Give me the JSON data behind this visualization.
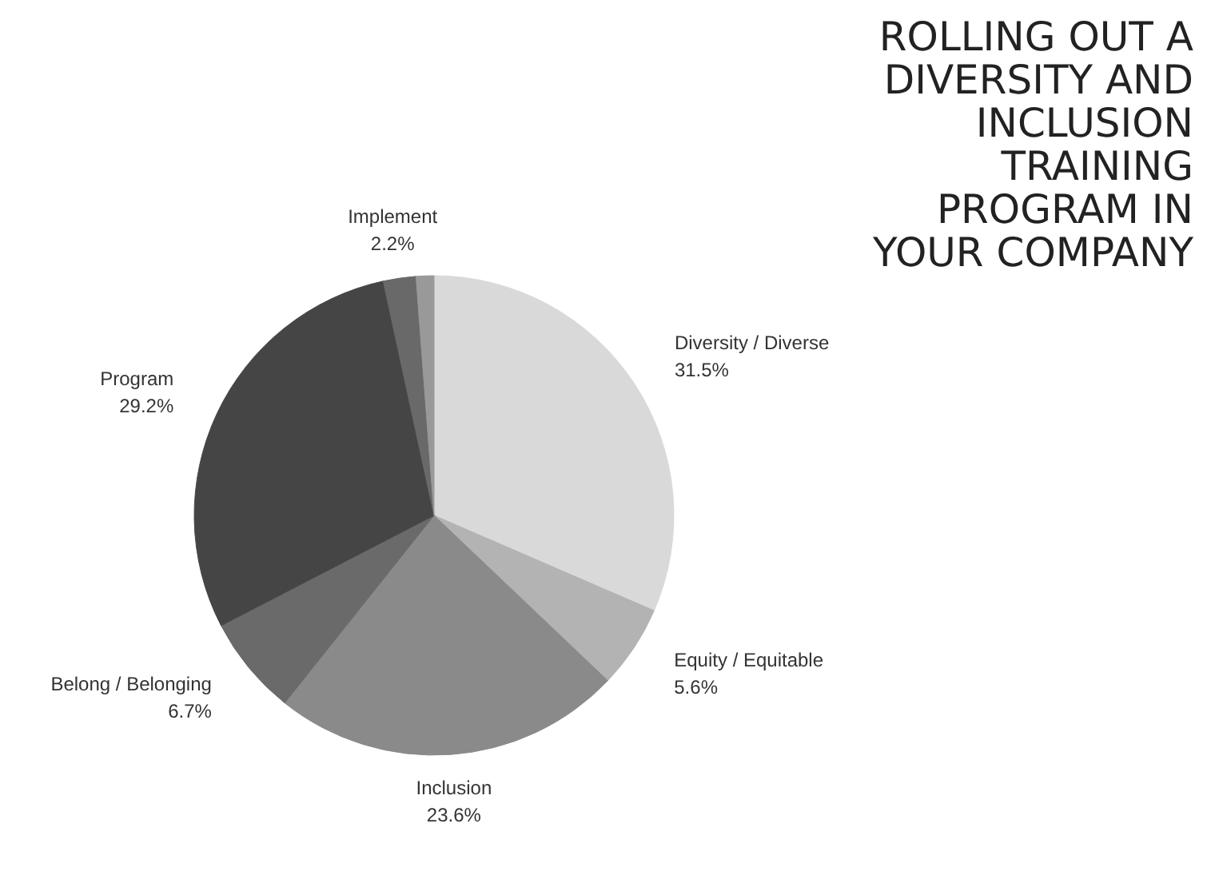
{
  "chart_data": {
    "type": "pie",
    "title": "ROLLING OUT A\nDIVERSITY AND\nINCLUSION\nTRAINING\nPROGRAM IN\nYOUR COMPANY",
    "categories": [
      "Diversity / Diverse",
      "Equity / Equitable",
      "Inclusion",
      "Belong / Belonging",
      "Program",
      "Implement",
      null
    ],
    "values": [
      31.5,
      5.6,
      23.6,
      6.7,
      29.2,
      2.2,
      1.2
    ],
    "value_labels": [
      "31.5%",
      "5.6%",
      "23.6%",
      "6.7%",
      "29.2%",
      "2.2%",
      null
    ],
    "colors": [
      "#d9d9d9",
      "#b3b3b3",
      "#8a8a8a",
      "#6a6a6a",
      "#454545",
      "#696969",
      "#999999"
    ]
  }
}
